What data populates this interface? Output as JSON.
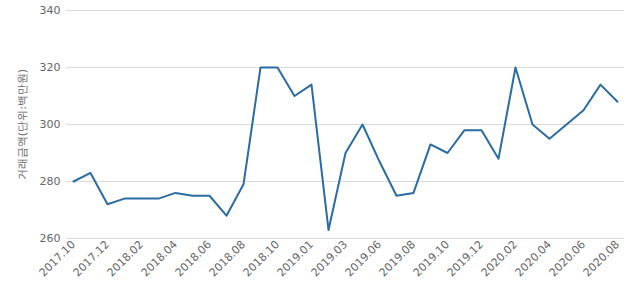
{
  "chart_data": {
    "type": "line",
    "y_label": "거래금액(단위:백만원)",
    "categories": [
      "2017.10",
      null,
      "2017.12",
      null,
      "2018.02",
      null,
      "2018.04",
      null,
      "2018.06",
      null,
      "2018.08",
      null,
      "2018.10",
      null,
      "2019.01",
      null,
      "2019.03",
      null,
      "2019.06",
      null,
      "2019.08",
      null,
      "2019.10",
      null,
      "2019.12",
      null,
      "2020.02",
      null,
      "2020.04",
      null,
      "2020.06",
      null,
      "2020.08"
    ],
    "values": [
      280,
      283,
      272,
      274,
      274,
      274,
      276,
      275,
      275,
      268,
      279,
      320,
      320,
      310,
      314,
      263,
      290,
      300,
      287,
      275,
      276,
      293,
      290,
      298,
      298,
      288,
      320,
      300,
      295,
      300,
      305,
      314,
      308
    ],
    "color": "#2b6ca3",
    "ylim": [
      260,
      340
    ],
    "yticks": [
      260,
      280,
      300,
      320,
      340
    ],
    "grid": true
  }
}
